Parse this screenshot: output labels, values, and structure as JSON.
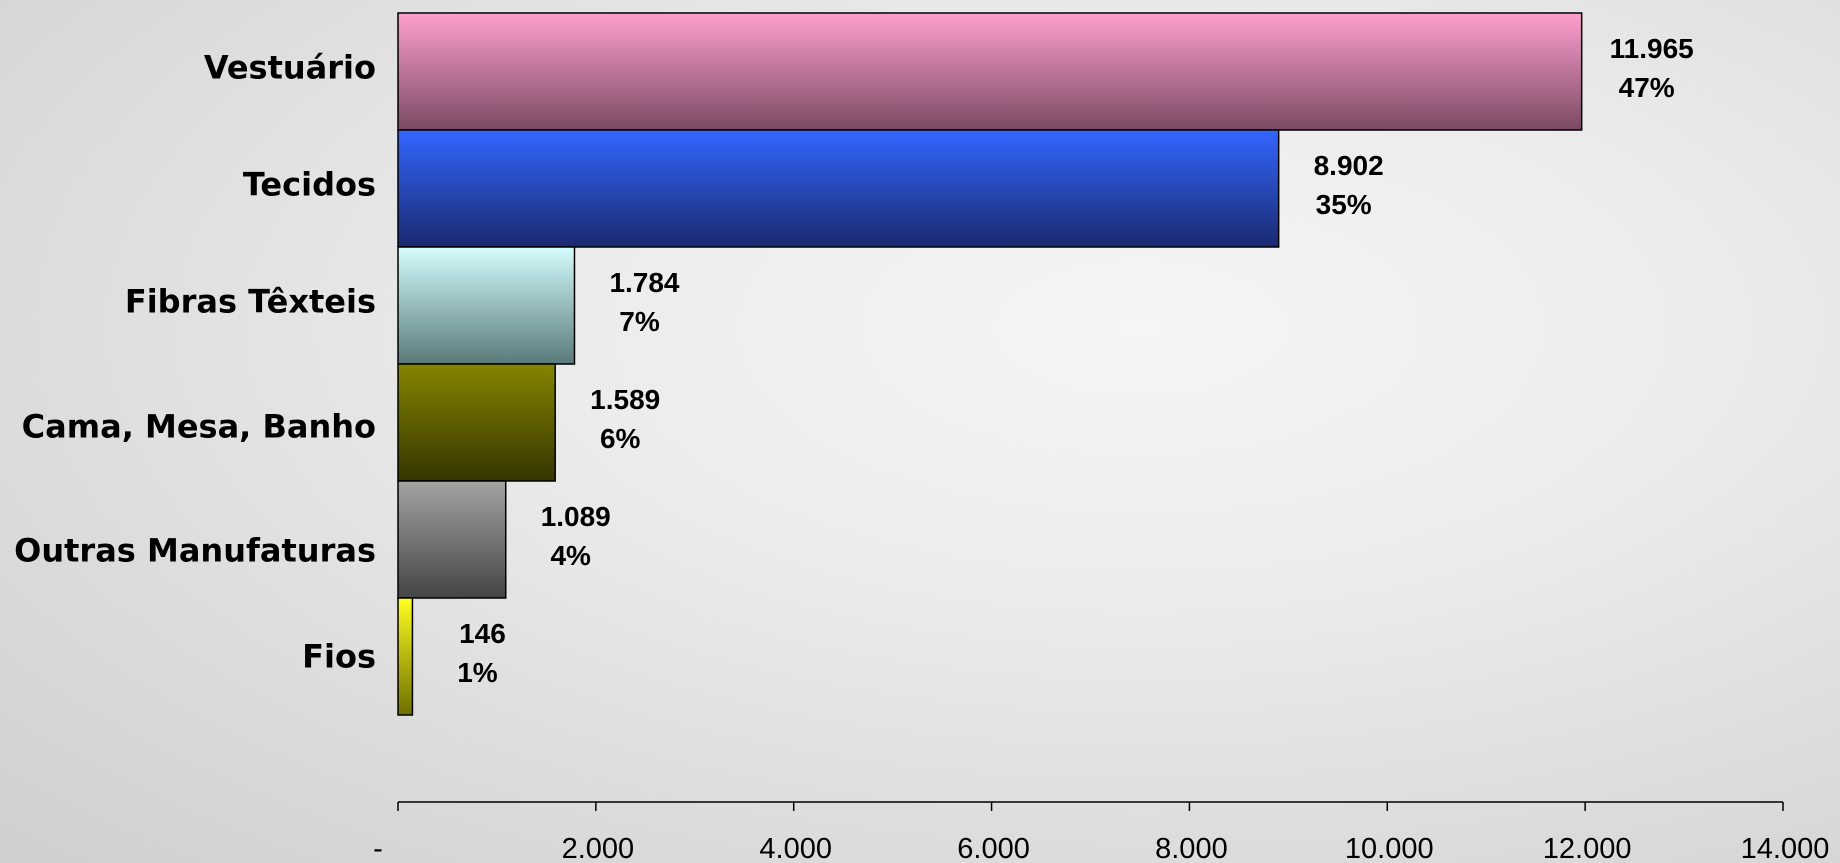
{
  "chart_data": {
    "type": "bar",
    "orientation": "horizontal",
    "title": "",
    "xlabel": "",
    "ylabel": "",
    "categories": [
      "Vestuário",
      "Tecidos",
      "Fibras Têxteis",
      "Cama, Mesa, Banho",
      "Outras Manufaturas",
      "Fios"
    ],
    "values": [
      11965,
      8902,
      1784,
      1589,
      1089,
      146
    ],
    "value_labels": [
      "11.965",
      "8.902",
      "1.784",
      "1.589",
      "1.089",
      "146"
    ],
    "percent_labels": [
      "47%",
      "35%",
      "7%",
      "6%",
      "4%",
      "1%"
    ],
    "colors": [
      [
        "#ff9fce",
        "#7a4a64"
      ],
      [
        "#3366ff",
        "#1a2a70"
      ],
      [
        "#d4fdfd",
        "#5a7a7a"
      ],
      [
        "#858500",
        "#353500"
      ],
      [
        "#a3a3a3",
        "#454545"
      ],
      [
        "#ffff22",
        "#6e6e00"
      ]
    ],
    "xlim": [
      0,
      14000
    ],
    "x_ticks": [
      0,
      2000,
      4000,
      6000,
      8000,
      10000,
      12000,
      14000
    ],
    "x_tick_labels": [
      "-",
      "2.000",
      "4.000",
      "6.000",
      "8.000",
      "10.000",
      "12.000",
      "14.000"
    ],
    "grid": false,
    "legend": "none"
  }
}
